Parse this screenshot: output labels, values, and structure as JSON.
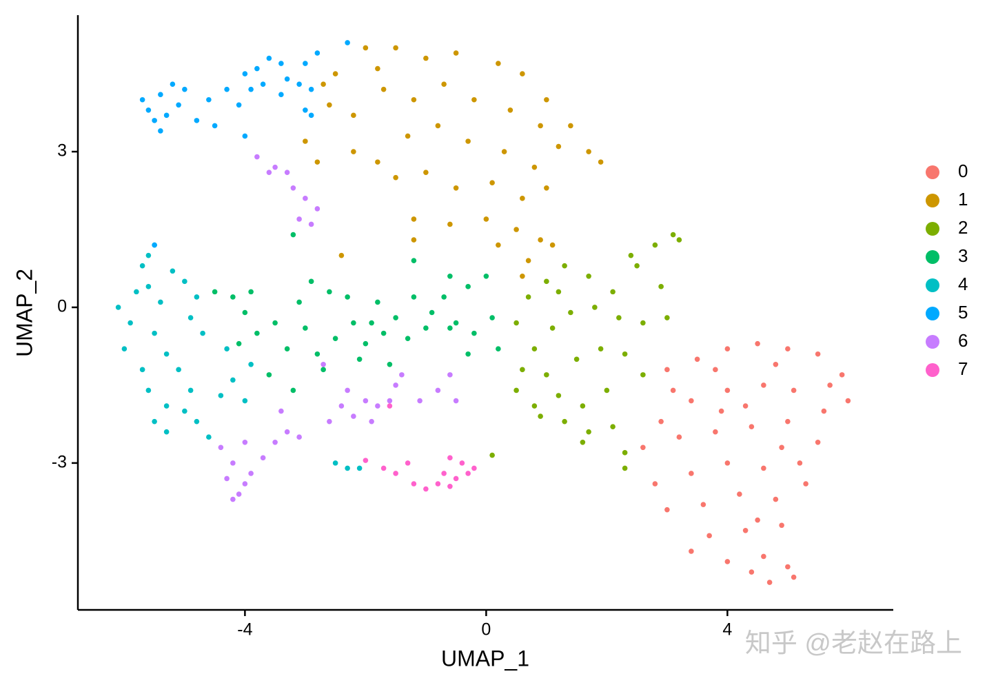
{
  "chart_data": {
    "type": "scatter",
    "x_label": "UMAP_1",
    "y_label": "UMAP_2",
    "xlim": [
      -6.77,
      6.75
    ],
    "ylim": [
      -5.83,
      5.63
    ],
    "xticks": [
      -4,
      0,
      4
    ],
    "yticks": [
      -3,
      0,
      3
    ],
    "grid": false,
    "legend": "right",
    "watermark": "知乎 @老赵在路上",
    "series": [
      {
        "name": "0",
        "color": "#F8766D",
        "x": [
          3.0,
          3.5,
          4.0,
          4.5,
          5.0,
          5.5,
          5.9,
          6.0,
          5.6,
          5.1,
          4.6,
          4.0,
          3.4,
          2.9,
          2.6,
          3.2,
          3.8,
          4.4,
          5.0,
          5.5,
          5.2,
          4.6,
          4.0,
          3.4,
          2.8,
          3.0,
          3.6,
          4.2,
          4.8,
          5.3,
          4.9,
          4.3,
          3.7,
          3.4,
          4.0,
          4.6,
          5.0,
          5.1,
          4.7,
          4.4,
          3.8,
          4.8,
          5.7,
          3.1,
          4.3,
          4.9,
          3.9,
          4.5
        ],
        "y": [
          -1.2,
          -1.0,
          -0.8,
          -0.7,
          -0.8,
          -0.9,
          -1.3,
          -1.8,
          -2.0,
          -1.6,
          -1.5,
          -1.6,
          -1.8,
          -2.2,
          -2.7,
          -2.5,
          -2.4,
          -2.3,
          -2.2,
          -2.6,
          -3.0,
          -3.1,
          -3.0,
          -3.2,
          -3.4,
          -3.9,
          -3.8,
          -3.6,
          -3.7,
          -3.4,
          -4.2,
          -4.3,
          -4.4,
          -4.7,
          -4.9,
          -4.8,
          -5.0,
          -5.2,
          -5.3,
          -5.1,
          -1.2,
          -1.1,
          -1.5,
          -1.6,
          -1.9,
          -2.7,
          -2.0,
          -4.1
        ]
      },
      {
        "name": "1",
        "color": "#CD9600",
        "x": [
          -2.5,
          -2.0,
          -1.5,
          -1.0,
          -0.5,
          0.2,
          0.6,
          1.0,
          1.4,
          1.7,
          1.9,
          -2.6,
          -2.2,
          -1.7,
          -1.2,
          -0.7,
          -0.2,
          0.4,
          0.9,
          1.2,
          -2.2,
          -1.8,
          -1.3,
          -0.8,
          -0.3,
          0.3,
          0.8,
          -1.5,
          -1.0,
          -0.5,
          0.1,
          0.6,
          1.0,
          -1.2,
          -0.6,
          0.0,
          0.5,
          0.9,
          0.2,
          0.7,
          1.1,
          -3.0,
          -2.8,
          -2.4,
          -1.2,
          0.6,
          -2.7,
          -1.8
        ],
        "y": [
          4.5,
          5.0,
          5.0,
          4.8,
          4.9,
          4.7,
          4.5,
          4.0,
          3.5,
          3.0,
          2.8,
          3.9,
          3.7,
          4.2,
          4.0,
          4.3,
          4.0,
          3.8,
          3.5,
          3.1,
          3.0,
          2.8,
          3.3,
          3.5,
          3.2,
          3.0,
          2.7,
          2.5,
          2.6,
          2.3,
          2.4,
          2.1,
          2.3,
          1.7,
          1.6,
          1.7,
          1.5,
          1.3,
          1.2,
          0.9,
          1.2,
          3.2,
          2.8,
          1.0,
          1.3,
          0.6,
          4.3,
          4.6
        ]
      },
      {
        "name": "2",
        "color": "#7CAE00",
        "x": [
          0.5,
          0.7,
          1.0,
          1.3,
          1.7,
          2.1,
          2.5,
          2.8,
          3.1,
          2.9,
          3.0,
          2.6,
          2.2,
          1.8,
          1.4,
          1.1,
          0.8,
          0.6,
          1.0,
          1.5,
          1.9,
          2.3,
          2.6,
          0.5,
          0.8,
          1.2,
          1.6,
          2.0,
          1.3,
          1.7,
          2.1,
          2.3,
          1.6,
          2.3,
          0.9,
          3.2,
          2.4,
          1.2,
          0.1
        ],
        "y": [
          -0.3,
          0.2,
          0.5,
          0.8,
          0.6,
          0.3,
          0.8,
          1.2,
          1.4,
          0.4,
          -0.2,
          -0.3,
          -0.2,
          0.0,
          -0.1,
          -0.4,
          -0.8,
          -1.2,
          -1.3,
          -1.0,
          -0.8,
          -0.9,
          -1.3,
          -1.6,
          -1.9,
          -1.7,
          -1.9,
          -1.6,
          -2.2,
          -2.4,
          -2.3,
          -2.8,
          -2.6,
          -3.1,
          -2.1,
          1.3,
          1.0,
          0.3,
          -2.85
        ]
      },
      {
        "name": "3",
        "color": "#00BE67",
        "x": [
          -4.5,
          -4.2,
          -4.0,
          -3.8,
          -3.5,
          -3.3,
          -3.0,
          -2.8,
          -2.5,
          -2.2,
          -2.0,
          -1.8,
          -1.5,
          -1.2,
          -1.0,
          -0.7,
          -0.5,
          -0.3,
          0.0,
          0.1,
          -0.2,
          -0.6,
          -0.9,
          -1.3,
          -1.7,
          -2.3,
          -2.6,
          -3.1,
          -3.6,
          -3.2,
          -2.7,
          -2.1,
          -1.6,
          -0.3,
          0.2,
          -3.2,
          -1.2,
          -0.6,
          -4.1,
          -3.9,
          -2.9,
          -1.9
        ],
        "y": [
          0.3,
          0.2,
          -0.1,
          -0.5,
          -0.3,
          -0.8,
          -0.4,
          -0.9,
          -0.6,
          -0.3,
          -0.7,
          0.1,
          -0.2,
          0.2,
          -0.4,
          0.2,
          -0.3,
          0.4,
          0.6,
          -0.2,
          -0.5,
          -0.4,
          -0.1,
          -0.6,
          -0.5,
          0.2,
          0.3,
          0.1,
          -1.3,
          -1.6,
          -1.2,
          -1.0,
          -1.1,
          -0.9,
          -0.8,
          1.4,
          0.9,
          0.6,
          -0.7,
          0.3,
          0.5,
          -0.3
        ]
      },
      {
        "name": "4",
        "color": "#00BFC4",
        "x": [
          -6.1,
          -5.9,
          -6.0,
          -5.8,
          -5.6,
          -5.4,
          -5.5,
          -5.3,
          -5.7,
          -5.6,
          -5.3,
          -5.0,
          -5.5,
          -5.3,
          -4.8,
          -4.6,
          -4.9,
          -4.4,
          -4.2,
          -4.0,
          -3.9,
          -4.3,
          -4.7,
          -4.9,
          -5.0,
          -5.2,
          -5.6,
          -5.7,
          -5.5,
          -4.8,
          -5.1,
          -2.5,
          -2.3,
          -2.1
        ],
        "y": [
          0.0,
          -0.3,
          -0.8,
          0.3,
          0.4,
          0.1,
          -0.5,
          -0.9,
          -1.2,
          -1.6,
          -1.9,
          -2.0,
          -2.2,
          -2.4,
          -2.2,
          -2.5,
          -1.6,
          -1.7,
          -1.4,
          -1.8,
          -1.1,
          -0.8,
          -0.5,
          -0.2,
          0.5,
          0.7,
          1.0,
          0.8,
          1.2,
          0.2,
          -1.2,
          -3.0,
          -3.1,
          -3.1
        ]
      },
      {
        "name": "5",
        "color": "#00A9FF",
        "x": [
          -5.7,
          -5.6,
          -5.5,
          -5.3,
          -5.4,
          -5.2,
          -5.0,
          -5.1,
          -4.8,
          -4.6,
          -4.3,
          -4.0,
          -3.8,
          -3.6,
          -3.4,
          -3.3,
          -3.1,
          -2.9,
          -3.0,
          -2.8,
          -2.3,
          -4.5,
          -4.1,
          -3.9,
          -3.7,
          -3.4,
          -3.0,
          -2.9,
          -4.0,
          -5.4,
          -5.5
        ],
        "y": [
          4.0,
          3.8,
          3.6,
          3.7,
          4.1,
          4.3,
          4.2,
          3.9,
          3.6,
          4.0,
          4.2,
          4.5,
          4.6,
          4.8,
          4.7,
          4.4,
          4.3,
          4.2,
          4.7,
          4.9,
          5.1,
          3.5,
          3.9,
          4.2,
          4.3,
          4.1,
          3.8,
          3.7,
          3.3,
          3.4,
          1.2
        ]
      },
      {
        "name": "6",
        "color": "#C77CFF",
        "x": [
          -3.8,
          -3.5,
          -3.3,
          -3.2,
          -3.0,
          -2.8,
          -3.1,
          -2.9,
          -3.6,
          -4.4,
          -4.2,
          -4.0,
          -4.3,
          -4.1,
          -4.2,
          -3.9,
          -3.7,
          -3.5,
          -3.3,
          -3.1,
          -4.0,
          -2.6,
          -2.4,
          -2.2,
          -2.0,
          -1.8,
          -1.6,
          -1.5,
          -1.4,
          -2.7,
          -2.3,
          -1.9,
          -1.1,
          -0.8,
          -0.6,
          -0.5,
          -3.4
        ],
        "y": [
          2.9,
          2.7,
          2.6,
          2.3,
          2.1,
          1.9,
          1.7,
          1.6,
          2.6,
          -2.7,
          -3.0,
          -2.6,
          -3.3,
          -3.6,
          -3.7,
          -3.2,
          -2.9,
          -2.6,
          -2.4,
          -2.5,
          -3.4,
          -2.2,
          -1.9,
          -2.1,
          -1.8,
          -1.9,
          -1.8,
          -1.5,
          -1.3,
          -1.1,
          -1.6,
          -2.2,
          -1.8,
          -1.6,
          -1.3,
          -1.8,
          -2.0
        ]
      },
      {
        "name": "7",
        "color": "#FF61CC",
        "x": [
          -2.0,
          -1.7,
          -1.5,
          -1.3,
          -1.2,
          -1.0,
          -0.8,
          -0.7,
          -0.6,
          -0.5,
          -0.4,
          -0.3,
          -0.2,
          -0.6,
          -1.6
        ],
        "y": [
          -2.95,
          -3.1,
          -3.2,
          -3.0,
          -3.4,
          -3.5,
          -3.4,
          -3.2,
          -2.9,
          -3.3,
          -3.0,
          -3.2,
          -3.1,
          -3.45,
          -1.9
        ]
      }
    ]
  }
}
